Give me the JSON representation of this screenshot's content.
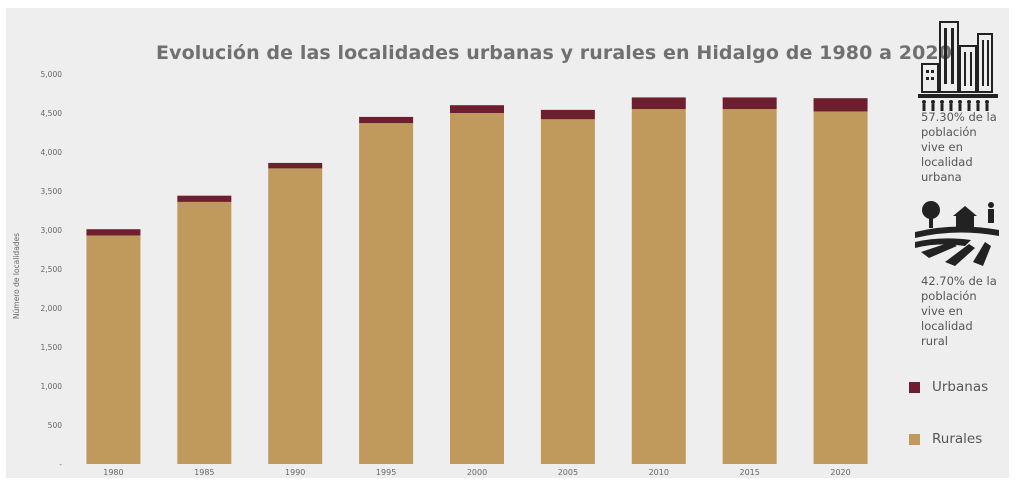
{
  "chart_data": {
    "type": "bar",
    "stacked": true,
    "title": "Evolución de las localidades urbanas y rurales en Hidalgo de 1980 a 2020",
    "ylabel": "Número de localidades",
    "xlabel": "",
    "ylim": [
      0,
      5000
    ],
    "yticks": [
      0,
      500,
      1000,
      1500,
      2000,
      2500,
      3000,
      3500,
      4000,
      4500,
      5000
    ],
    "ytick_labels": [
      "-",
      "500",
      "1,000",
      "1,500",
      "2,000",
      "2,500",
      "3,000",
      "3,500",
      "4,000",
      "4,500",
      "5,000"
    ],
    "categories": [
      "1980",
      "1985",
      "1990",
      "1995",
      "2000",
      "2005",
      "2010",
      "2015",
      "2020"
    ],
    "series": [
      {
        "name": "Rurales",
        "color": "#bf9a5c",
        "values": [
          2930,
          3360,
          3790,
          4370,
          4500,
          4420,
          4550,
          4550,
          4520
        ]
      },
      {
        "name": "Urbanas",
        "color": "#6d1f2f",
        "values": [
          80,
          80,
          70,
          80,
          100,
          120,
          150,
          150,
          170
        ]
      }
    ],
    "legend": [
      "Urbanas",
      "Rurales"
    ],
    "legend_position": "right",
    "grid": false
  },
  "sidebar": {
    "urban_icon": "city-buildings-icon",
    "urban_text": [
      "57.30% de la",
      "población",
      "vive en",
      "localidad",
      "urbana"
    ],
    "rural_icon": "rural-landscape-icon",
    "rural_text": [
      "42.70% de la",
      "población",
      "vive en",
      "localidad",
      "rural"
    ]
  },
  "colors": {
    "rural": "#bf9a5c",
    "urban": "#6d1f2f",
    "background": "#eeeeee",
    "text": "#555555"
  }
}
